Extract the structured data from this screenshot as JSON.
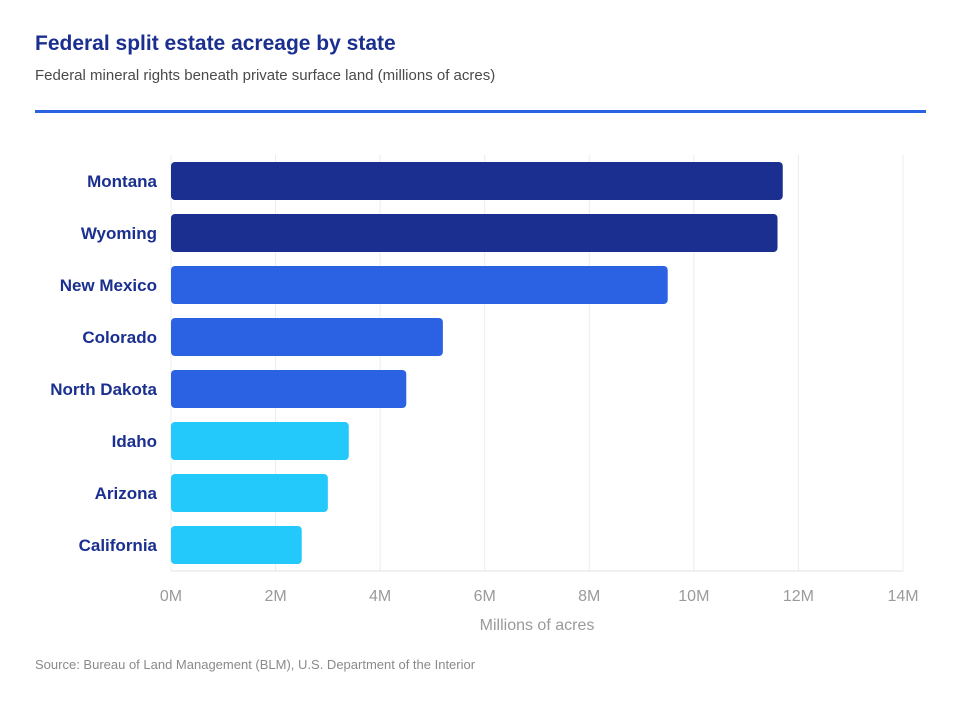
{
  "header": {
    "title": "Federal split estate acreage by state",
    "subtitle": "Federal mineral rights beneath private surface land (millions of acres)"
  },
  "footer": {
    "source": "Source: Bureau of Land Management (BLM), U.S. Department of the Interior"
  },
  "colors": {
    "accent": "#2b62e3",
    "dark_blue": "#1a2f8f",
    "mid_blue": "#2b62e3",
    "light_blue": "#24c9fb"
  },
  "chart_data": {
    "type": "bar",
    "orientation": "horizontal",
    "categories": [
      "Montana",
      "Wyoming",
      "New Mexico",
      "Colorado",
      "North Dakota",
      "Idaho",
      "Arizona",
      "California"
    ],
    "values": [
      11.7,
      11.6,
      9.5,
      5.2,
      4.5,
      3.4,
      3.0,
      2.5
    ],
    "bar_colors": [
      "#1a2f8f",
      "#1a2f8f",
      "#2b62e3",
      "#2b62e3",
      "#2b62e3",
      "#24c9fb",
      "#24c9fb",
      "#24c9fb"
    ],
    "xlabel": "Millions of acres",
    "ylabel": "",
    "xlim": [
      0,
      14
    ],
    "xticks": [
      0,
      2,
      4,
      6,
      8,
      10,
      12,
      14
    ],
    "xtick_labels": [
      "0M",
      "2M",
      "4M",
      "6M",
      "8M",
      "10M",
      "12M",
      "14M"
    ],
    "grid": true,
    "legend": "none"
  }
}
